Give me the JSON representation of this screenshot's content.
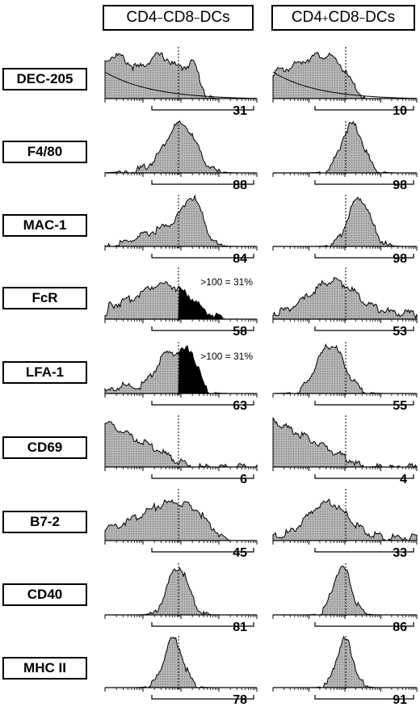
{
  "columns": [
    {
      "prefix": "CD4",
      "sup1": "−",
      "mid": " CD8",
      "sup2": "−",
      "suffix": " DCs"
    },
    {
      "prefix": "CD4",
      "sup1": "+",
      "mid": " CD8",
      "sup2": "−",
      "suffix": " DCs"
    }
  ],
  "rows": [
    "DEC-205",
    "F4/80",
    "MAC-1",
    "FcR",
    "LFA-1",
    "CD69",
    "B7-2",
    "CD40",
    "MHC II"
  ],
  "colors": {
    "fill": "#b4b4b4",
    "outline": "#000000",
    "high_fill": "#000000",
    "background": "#ffffff"
  },
  "chart_data": {
    "type": "area",
    "description_axes": "flow cytometry histograms; x axis log fluorescence (ticks unlabeled), y axis cell count",
    "gate_threshold": 100,
    "grid": false,
    "panels": [
      {
        "row": "DEC-205",
        "column": 0,
        "percent_positive": "31",
        "shape": "broad low",
        "control_overlay": true
      },
      {
        "row": "DEC-205",
        "column": 1,
        "percent_positive": "10",
        "shape": "mid peak",
        "control_overlay": true
      },
      {
        "row": "F4/80",
        "column": 0,
        "percent_positive": "88"
      },
      {
        "row": "F4/80",
        "column": 1,
        "percent_positive": "98"
      },
      {
        "row": "MAC-1",
        "column": 0,
        "percent_positive": "84"
      },
      {
        "row": "MAC-1",
        "column": 1,
        "percent_positive": "98"
      },
      {
        "row": "FcR",
        "column": 0,
        "percent_positive": "58",
        "annotation": ">100 = 31%",
        "high_region_filled": true
      },
      {
        "row": "FcR",
        "column": 1,
        "percent_positive": "53"
      },
      {
        "row": "LFA-1",
        "column": 0,
        "percent_positive": "63",
        "annotation": ">100 = 31%",
        "high_region_filled": true
      },
      {
        "row": "LFA-1",
        "column": 1,
        "percent_positive": "55"
      },
      {
        "row": "CD69",
        "column": 0,
        "percent_positive": "6"
      },
      {
        "row": "CD69",
        "column": 1,
        "percent_positive": "4"
      },
      {
        "row": "B7-2",
        "column": 0,
        "percent_positive": "45"
      },
      {
        "row": "B7-2",
        "column": 1,
        "percent_positive": "33"
      },
      {
        "row": "CD40",
        "column": 0,
        "percent_positive": "81"
      },
      {
        "row": "CD40",
        "column": 1,
        "percent_positive": "86"
      },
      {
        "row": "MHC II",
        "column": 0,
        "percent_positive": "78"
      },
      {
        "row": "MHC II",
        "column": 1,
        "percent_positive": "91"
      }
    ]
  }
}
